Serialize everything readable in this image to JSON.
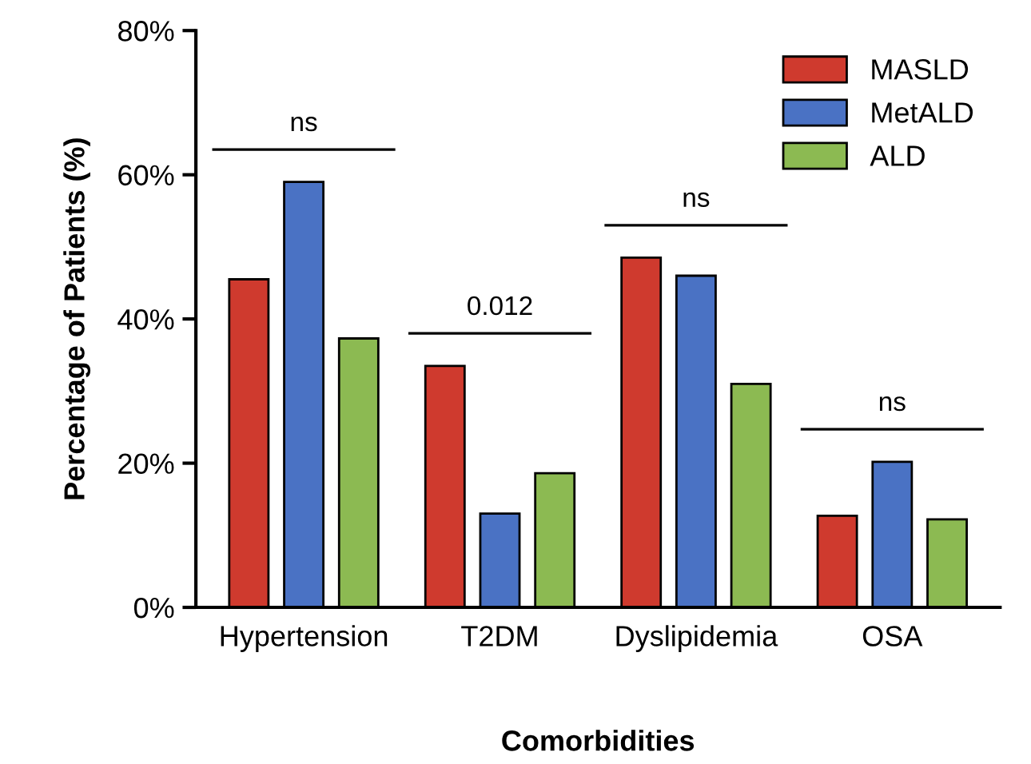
{
  "chart_data": {
    "type": "bar",
    "xlabel": "Comorbidities",
    "ylabel": "Percentage of Patients (%)",
    "categories": [
      "Hypertension",
      "T2DM",
      "Dyslipidemia",
      "OSA"
    ],
    "series": [
      {
        "name": "MASLD",
        "color": "#cf3a2e",
        "values": [
          45.5,
          33.5,
          48.5,
          12.7
        ]
      },
      {
        "name": "MetALD",
        "color": "#4a72c4",
        "values": [
          59,
          13,
          46,
          20.2
        ]
      },
      {
        "name": "ALD",
        "color": "#8cba52",
        "values": [
          37.3,
          18.6,
          31,
          12.2
        ]
      }
    ],
    "ylim": [
      0,
      80
    ],
    "yticks": [
      {
        "value": 0,
        "label": "0%"
      },
      {
        "value": 20,
        "label": "20%"
      },
      {
        "value": 40,
        "label": "40%"
      },
      {
        "value": 60,
        "label": "60%"
      },
      {
        "value": 80,
        "label": "80%"
      }
    ],
    "annotations": [
      "ns",
      "0.012",
      "ns",
      "ns"
    ],
    "legend": "top right",
    "grid": false
  }
}
